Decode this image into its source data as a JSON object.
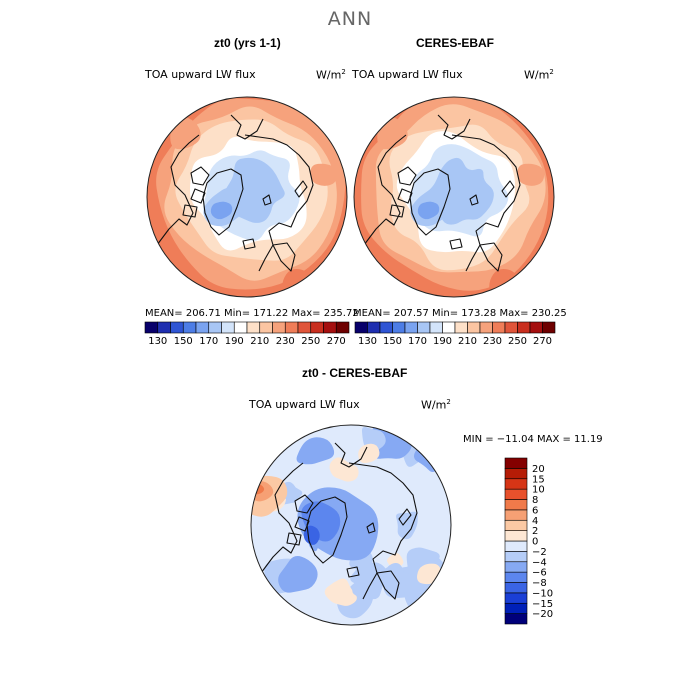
{
  "figure": {
    "title": "ANN"
  },
  "colors": {
    "land_outline": "#111111",
    "map_edge": "#222222"
  },
  "panels": [
    {
      "title": "zt0 (yrs 1-1)",
      "variable": "TOA upward LW flux",
      "units_base": "W/m",
      "units_exp": "2",
      "stats": "MEAN= 206.71  Min= 171.22  Max= 235.72"
    },
    {
      "title": "CERES-EBAF",
      "variable": "TOA upward LW flux",
      "units_base": "W/m",
      "units_exp": "2",
      "stats": "MEAN= 207.57  Min= 173.28  Max= 230.25"
    },
    {
      "title": "zt0 - CERES-EBAF",
      "variable": "TOA upward LW flux",
      "units_base": "W/m",
      "units_exp": "2",
      "stats": "MIN = −11.04 MAX =  11.19"
    }
  ],
  "chart_data": [
    {
      "type": "heatmap",
      "projection": "north polar stereographic",
      "title": "zt0 (yrs 1-1)",
      "label": "TOA upward LW flux",
      "units": "W/m2",
      "mean": 206.71,
      "min": 171.22,
      "max": 235.72,
      "colorbar": {
        "orientation": "horizontal",
        "levels": [
          130,
          140,
          150,
          160,
          170,
          180,
          190,
          200,
          210,
          220,
          230,
          240,
          250,
          260,
          270
        ],
        "tick_labels": [
          "130",
          "150",
          "170",
          "190",
          "210",
          "230",
          "250",
          "270"
        ],
        "colors": [
          "#08006b",
          "#1f2fb0",
          "#2f55d4",
          "#4d7de6",
          "#7aa3f0",
          "#a8c6f5",
          "#d3e4fa",
          "#ffffff",
          "#fde0c8",
          "#fbc5a2",
          "#f6a27c",
          "#ef7d58",
          "#e0553a",
          "#c92f1f",
          "#a50f0f",
          "#6e0000"
        ]
      }
    },
    {
      "type": "heatmap",
      "projection": "north polar stereographic",
      "title": "CERES-EBAF",
      "label": "TOA upward LW flux",
      "units": "W/m2",
      "mean": 207.57,
      "min": 173.28,
      "max": 230.25,
      "colorbar": {
        "orientation": "horizontal",
        "levels": [
          130,
          140,
          150,
          160,
          170,
          180,
          190,
          200,
          210,
          220,
          230,
          240,
          250,
          260,
          270
        ],
        "tick_labels": [
          "130",
          "150",
          "170",
          "190",
          "210",
          "230",
          "250",
          "270"
        ],
        "colors": [
          "#08006b",
          "#1f2fb0",
          "#2f55d4",
          "#4d7de6",
          "#7aa3f0",
          "#a8c6f5",
          "#d3e4fa",
          "#ffffff",
          "#fde0c8",
          "#fbc5a2",
          "#f6a27c",
          "#ef7d58",
          "#e0553a",
          "#c92f1f",
          "#a50f0f",
          "#6e0000"
        ]
      }
    },
    {
      "type": "heatmap",
      "projection": "north polar stereographic",
      "title": "zt0 - CERES-EBAF",
      "label": "TOA upward LW flux",
      "units": "W/m2",
      "min": -11.04,
      "max": 11.19,
      "colorbar": {
        "orientation": "vertical",
        "levels": [
          -20,
          -15,
          -10,
          -8,
          -6,
          -4,
          -2,
          0,
          2,
          4,
          6,
          8,
          10,
          15,
          20
        ],
        "tick_labels": [
          "−20",
          "−15",
          "−10",
          "−8",
          "−6",
          "−4",
          "−2",
          "0",
          "2",
          "4",
          "6",
          "8",
          "10",
          "15",
          "20"
        ],
        "colors": [
          "#00007a",
          "#0020b8",
          "#1a3fd6",
          "#3a64e4",
          "#5c86ee",
          "#86a9f3",
          "#b5cdf8",
          "#dfeafc",
          "#fde7d4",
          "#fbc9a4",
          "#f6a074",
          "#f07a4a",
          "#e8512c",
          "#d63516",
          "#b51c06",
          "#840000"
        ]
      }
    }
  ]
}
